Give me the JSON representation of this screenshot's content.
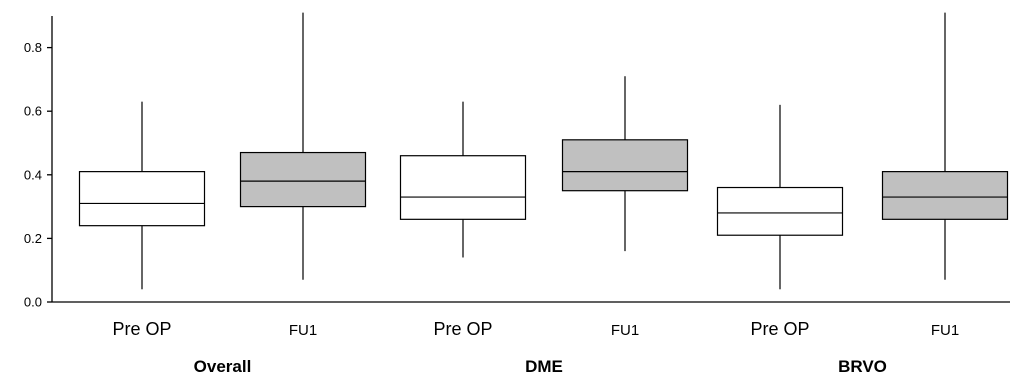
{
  "chart_data": {
    "type": "box",
    "ylim": [
      0,
      0.9
    ],
    "yticks": [
      "0.0",
      "0.2",
      "0.4",
      "0.6",
      "0.8"
    ],
    "grid": false,
    "groups": [
      {
        "label": "Overall",
        "boxes": [
          {
            "label": "Pre OP",
            "min": 0.04,
            "q1": 0.24,
            "median": 0.31,
            "q3": 0.41,
            "max": 0.63,
            "fill": "#ffffff"
          },
          {
            "label": "FU1",
            "min": 0.07,
            "q1": 0.3,
            "median": 0.38,
            "q3": 0.47,
            "max": 0.91,
            "fill": "#c0c0c0"
          }
        ]
      },
      {
        "label": "DME",
        "boxes": [
          {
            "label": "Pre OP",
            "min": 0.14,
            "q1": 0.26,
            "median": 0.33,
            "q3": 0.46,
            "max": 0.63,
            "fill": "#ffffff"
          },
          {
            "label": "FU1",
            "min": 0.16,
            "q1": 0.35,
            "median": 0.41,
            "q3": 0.51,
            "max": 0.71,
            "fill": "#c0c0c0"
          }
        ]
      },
      {
        "label": "BRVO",
        "boxes": [
          {
            "label": "Pre OP",
            "min": 0.04,
            "q1": 0.21,
            "median": 0.28,
            "q3": 0.36,
            "max": 0.62,
            "fill": "#ffffff"
          },
          {
            "label": "FU1",
            "min": 0.07,
            "q1": 0.26,
            "median": 0.33,
            "q3": 0.41,
            "max": 0.91,
            "fill": "#c0c0c0"
          }
        ]
      }
    ]
  }
}
